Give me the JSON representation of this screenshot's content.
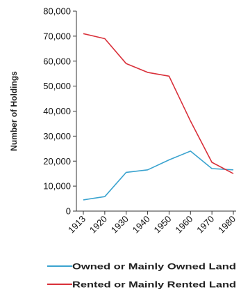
{
  "chart_data": {
    "type": "line",
    "title": "",
    "xlabel": "",
    "ylabel": "Number of Holdings",
    "x": [
      1913,
      1920,
      1930,
      1940,
      1950,
      1960,
      1970,
      1980
    ],
    "x_tick_labels": [
      "1913",
      "1920",
      "1930",
      "1940",
      "1950",
      "1960",
      "1970",
      "1980"
    ],
    "ylim": [
      0,
      80000
    ],
    "y_ticks": [
      0,
      10000,
      20000,
      30000,
      40000,
      50000,
      60000,
      70000,
      80000
    ],
    "y_tick_labels": [
      "0",
      "10,000",
      "20,000",
      "30,000",
      "40,000",
      "50,000",
      "60,000",
      "70,000",
      "80,000"
    ],
    "grid": false,
    "legend_position": "bottom",
    "series": [
      {
        "name": "Owned or Mainly Owned Land",
        "color": "#3aa3cf",
        "values": [
          4500,
          5800,
          15500,
          16500,
          20500,
          24000,
          17000,
          16500
        ]
      },
      {
        "name": "Rented or Mainly Rented Land",
        "color": "#d9303a",
        "values": [
          71000,
          69000,
          59000,
          55500,
          54000,
          36000,
          19500,
          15000
        ]
      }
    ]
  }
}
